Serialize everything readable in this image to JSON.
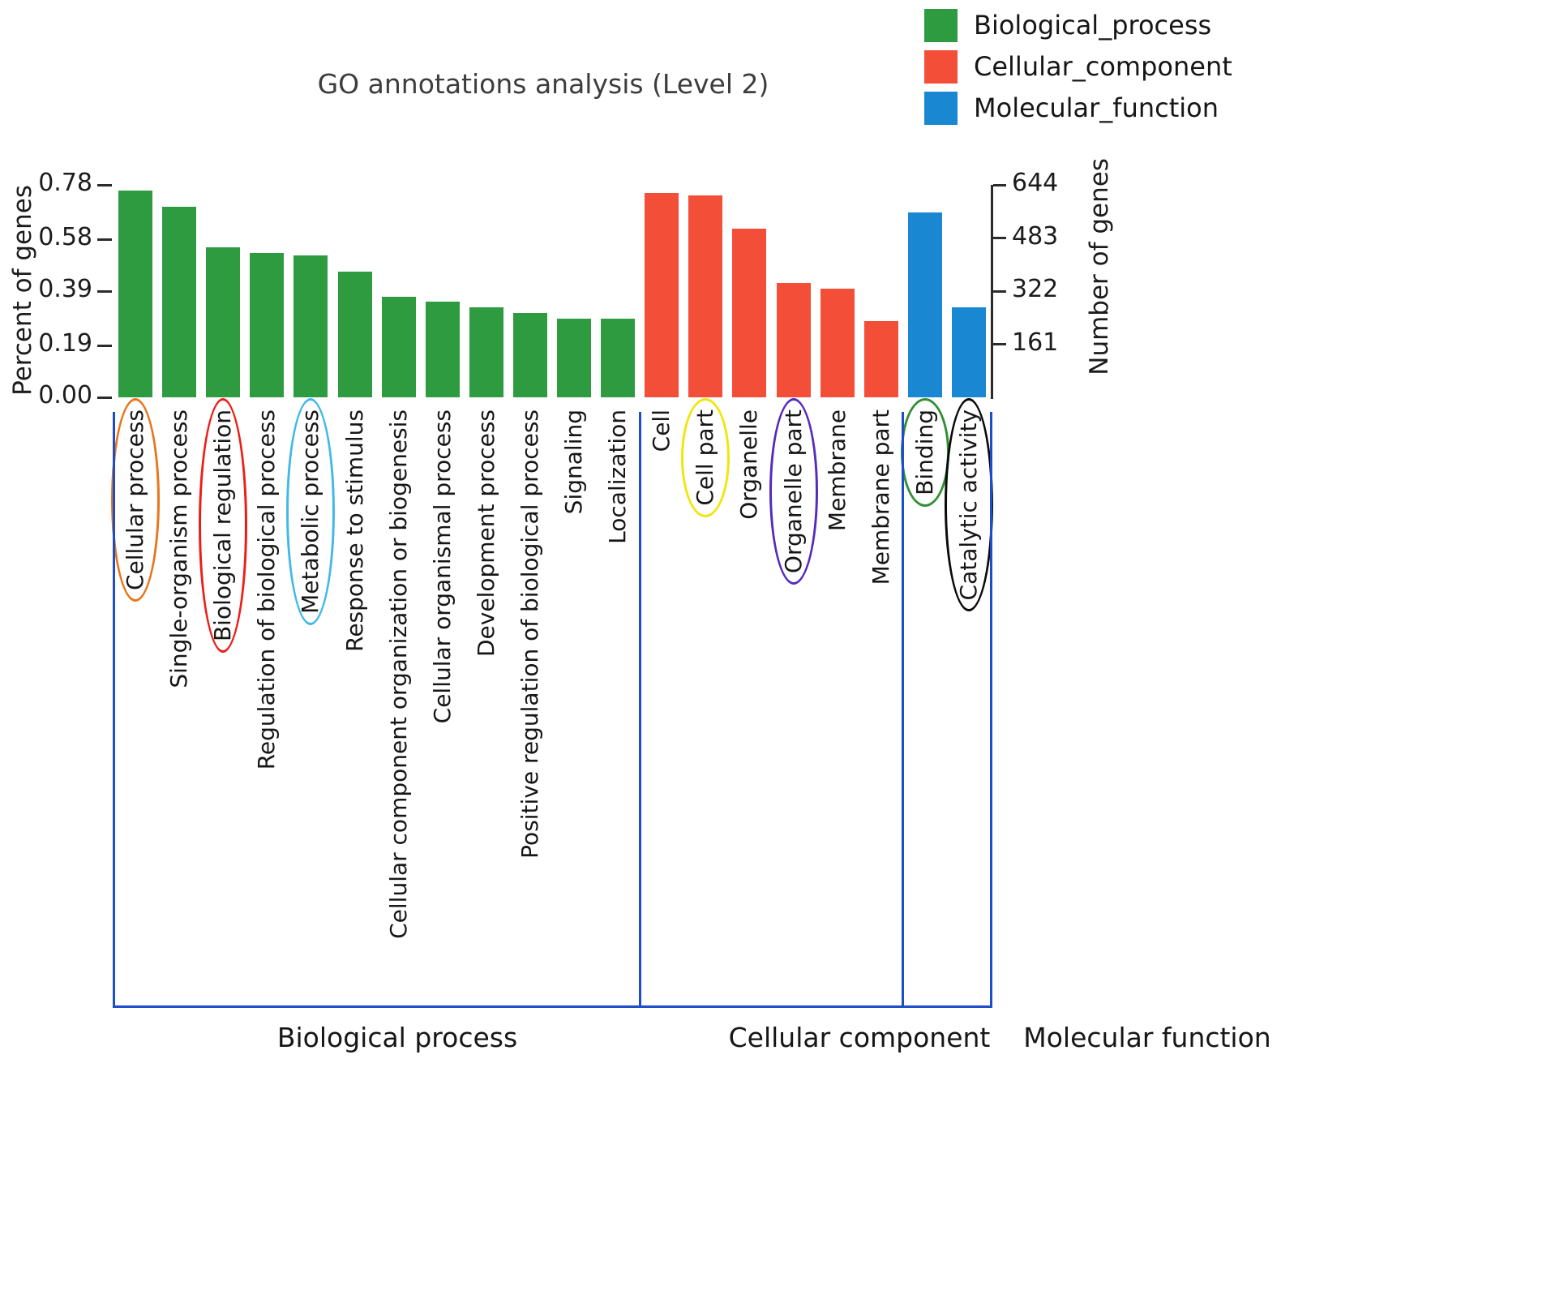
{
  "chart_data": {
    "type": "bar",
    "title": "GO annotations analysis (Level 2)",
    "ylabel_left": "Percent of genes",
    "ylabel_right": "Number of genes",
    "y_left_ticks": [
      "0.00",
      "0.19",
      "0.39",
      "0.58",
      "0.78"
    ],
    "y_left_tick_values": [
      0,
      0.19,
      0.39,
      0.58,
      0.78
    ],
    "y_right_ticks": [
      "161",
      "322",
      "483",
      "644"
    ],
    "y_right_tick_values": [
      161,
      322,
      483,
      644
    ],
    "ylim_left": [
      0,
      0.78
    ],
    "grid": false,
    "legend_position": "top-right",
    "bracket_color": "#1d4ec8",
    "groups": [
      {
        "label": "Biological process",
        "legend_label": "Biological_process",
        "color": "#2e9b41",
        "bars": [
          {
            "label": "Cellular process",
            "value": 0.76,
            "circle": "#e8751a"
          },
          {
            "label": "Single-organism process",
            "value": 0.7
          },
          {
            "label": "Biological regulation",
            "value": 0.55,
            "circle": "#ee1c14"
          },
          {
            "label": "Regulation of biological process",
            "value": 0.53
          },
          {
            "label": "Metabolic process",
            "value": 0.52,
            "circle": "#41b9e8"
          },
          {
            "label": "Response to stimulus",
            "value": 0.46
          },
          {
            "label": "Cellular component organization or biogenesis",
            "value": 0.37
          },
          {
            "label": "Cellular organismal process",
            "value": 0.35
          },
          {
            "label": "Development process",
            "value": 0.33
          },
          {
            "label": "Positive regulation of biological process",
            "value": 0.31
          },
          {
            "label": "Signaling",
            "value": 0.29
          },
          {
            "label": "Localization",
            "value": 0.29
          }
        ]
      },
      {
        "label": "Cellular component",
        "legend_label": "Cellular_component",
        "color": "#f24e38",
        "bars": [
          {
            "label": "Cell",
            "value": 0.75
          },
          {
            "label": "Cell part",
            "value": 0.74,
            "circle": "#f2e50e"
          },
          {
            "label": "Organelle",
            "value": 0.62
          },
          {
            "label": "Organelle part",
            "value": 0.42,
            "circle": "#552bbb"
          },
          {
            "label": "Membrane",
            "value": 0.4
          },
          {
            "label": "Membrane part",
            "value": 0.28
          }
        ]
      },
      {
        "label": "Molecular function",
        "legend_label": "Molecular_function",
        "color": "#1a87d2",
        "bars": [
          {
            "label": "Binding",
            "value": 0.68,
            "circle": "#2f8f35"
          },
          {
            "label": "Catalytic activity",
            "value": 0.33,
            "circle": "#0a0a0a"
          }
        ]
      }
    ]
  }
}
